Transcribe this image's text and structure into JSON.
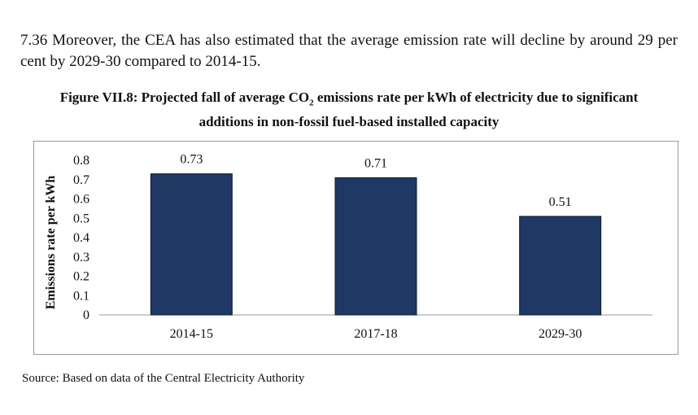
{
  "paragraph": "7.36 Moreover, the CEA has also estimated that the average emission rate will decline by around 29 per cent by 2029-30 compared to 2014-15.",
  "figure": {
    "title_pre": "Figure VII.8: Projected fall of average CO",
    "title_sub": "2",
    "title_post": " emissions rate per kWh of electricity due to significant additions in non-fossil fuel-based installed capacity"
  },
  "source": "Source: Based on data of the Central Electricity Authority",
  "colors": {
    "bar": "#1f3864",
    "bar_stroke": "#0b1a33",
    "axis": "#9a9a9a"
  },
  "chart_data": {
    "type": "bar",
    "categories": [
      "2014-15",
      "2017-18",
      "2029-30"
    ],
    "values": [
      0.73,
      0.71,
      0.51
    ],
    "data_labels": [
      "0.73",
      "0.71",
      "0.51"
    ],
    "ylabel": "Emissions rate per kWh",
    "xlabel": "",
    "ylim": [
      0,
      0.8
    ],
    "yticks": [
      0,
      0.1,
      0.2,
      0.3,
      0.4,
      0.5,
      0.6,
      0.7,
      0.8
    ],
    "ytick_labels": [
      "0",
      "0.1",
      "0.2",
      "0.3",
      "0.4",
      "0.5",
      "0.6",
      "0.7",
      "0.8"
    ],
    "grid": false,
    "legend": "none"
  }
}
